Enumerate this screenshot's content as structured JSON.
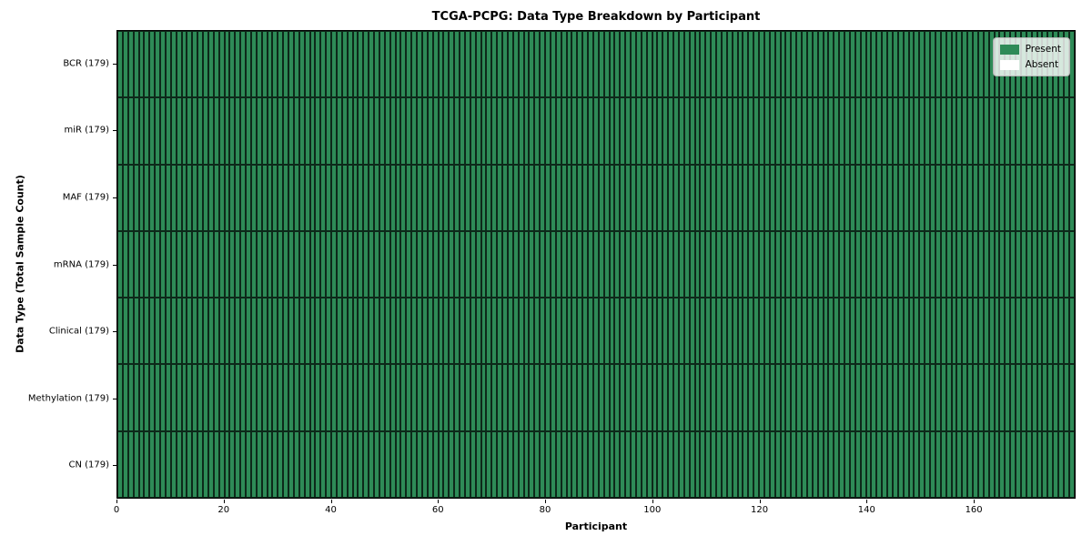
{
  "figure": {
    "title": "TCGA-PCPG: Data Type Breakdown by Participant"
  },
  "axes": {
    "xlabel": "Participant",
    "ylabel": "Data Type (Total Sample Count)"
  },
  "legend": {
    "items": [
      {
        "label": "Present",
        "color": "#2e8b57",
        "swatch_name": "present-swatch"
      },
      {
        "label": "Absent",
        "color": "#ffffff",
        "swatch_name": "absent-swatch"
      }
    ],
    "position": "upper right"
  },
  "chart_data": {
    "type": "heatmap",
    "title": "TCGA-PCPG: Data Type Breakdown by Participant",
    "xlabel": "Participant",
    "ylabel": "Data Type (Total Sample Count)",
    "x_ticks": [
      0,
      20,
      40,
      60,
      80,
      100,
      120,
      140,
      160
    ],
    "xlim": [
      0,
      179
    ],
    "n_participants": 179,
    "grid": "cell-edges-on",
    "legend_position": "upper right",
    "colors": {
      "present": "#2e8b57",
      "absent": "#ffffff"
    },
    "rows": [
      {
        "label": "BCR (179)",
        "data_type": "BCR",
        "total_samples": 179,
        "present_count": 179,
        "absent_count": 0
      },
      {
        "label": "miR (179)",
        "data_type": "miR",
        "total_samples": 179,
        "present_count": 179,
        "absent_count": 0
      },
      {
        "label": "MAF (179)",
        "data_type": "MAF",
        "total_samples": 179,
        "present_count": 179,
        "absent_count": 0
      },
      {
        "label": "mRNA (179)",
        "data_type": "mRNA",
        "total_samples": 179,
        "present_count": 179,
        "absent_count": 0
      },
      {
        "label": "Clinical (179)",
        "data_type": "Clinical",
        "total_samples": 179,
        "present_count": 179,
        "absent_count": 0
      },
      {
        "label": "Methylation (179)",
        "data_type": "Methylation",
        "total_samples": 179,
        "present_count": 179,
        "absent_count": 0
      },
      {
        "label": "CN (179)",
        "data_type": "CN",
        "total_samples": 179,
        "present_count": 179,
        "absent_count": 0
      }
    ]
  }
}
